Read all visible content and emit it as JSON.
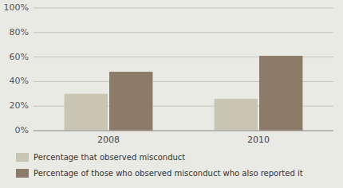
{
  "chart_data": {
    "type": "bar",
    "categories": [
      "2008",
      "2010"
    ],
    "series": [
      {
        "name": "Percentage that observed misconduct",
        "color": "#c8c5b2",
        "values": [
          0.3,
          0.26
        ]
      },
      {
        "name": "Percentage of those who observed misconduct who also reported it",
        "color": "#8b7b68",
        "values": [
          0.48,
          0.61
        ]
      }
    ],
    "ylim": [
      0,
      1.0
    ],
    "yticks": [
      {
        "value": 0,
        "label": "0%"
      },
      {
        "value": 0.2,
        "label": "20%"
      },
      {
        "value": 0.4,
        "label": "40%"
      },
      {
        "value": 0.6,
        "label": "60%"
      },
      {
        "value": 0.8,
        "label": "80%"
      },
      {
        "value": 1.0,
        "label": "100%"
      }
    ],
    "grid": true,
    "legend": "bottom"
  }
}
